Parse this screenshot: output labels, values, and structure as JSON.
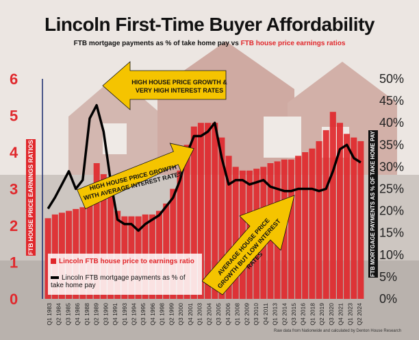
{
  "title": "Lincoln First-Time Buyer Affordability",
  "subtitle_black": "FTB mortgage payments as % of take home pay",
  "subtitle_vs": " vs ",
  "subtitle_red": "FTB house price earnings ratios",
  "left_axis_title": "FTB HOUSE PRICE EARNINGS RATIOS",
  "right_axis_title": "FTB MORTGAGE PAYMENTS AS % OF TAKE HOME PAY",
  "legend": {
    "bar_label": "Lincoln FTB house price to earnings ratio",
    "line_label": "Lincoln FTB mortgage payments as % of take home pay"
  },
  "callouts": [
    {
      "line1": "HIGH HOUSE PRICE GROWTH &",
      "line2": "VERY HIGH INTEREST RATES",
      "line3": ""
    },
    {
      "line1": "HIGH HOUSE PRICE GROWTH",
      "line2": "WITH AVERAGE INTEREST RATES",
      "line3": ""
    },
    {
      "line1": "AVERAGE HOUSE PRICE",
      "line2": "GROWTH BUT LOW INTEREST",
      "line3": "RATES"
    }
  ],
  "source": "Raw data from Nationwide and calculated by Denton House Research",
  "colors": {
    "bars": "#e0282c",
    "line": "#000000",
    "callout": "#f5c400"
  },
  "chart_data": {
    "type": "bar",
    "x_tick_labels": [
      "Q1 1983",
      "Q2 1984",
      "Q3 1985",
      "Q4 1986",
      "Q1 1988",
      "Q2 1989",
      "Q3 1990",
      "Q4 1991",
      "Q1 1993",
      "Q2 1994",
      "Q3 1995",
      "Q4 1996",
      "Q1 1998",
      "Q2 1999",
      "Q3 2000",
      "Q4 2001",
      "Q1 2003",
      "Q2 2004",
      "Q3 2005",
      "Q4 2006",
      "Q1 2008",
      "Q2 2009",
      "Q3 2010",
      "Q4 2011",
      "Q1 2013",
      "Q2 2014",
      "Q3 2015",
      "Q4 2016",
      "Q1 2018",
      "Q2 2019",
      "Q3 2020",
      "Q4 2021",
      "Q1 2023",
      "Q2 2024"
    ],
    "left_ticks": [
      "0",
      "1",
      "2",
      "3",
      "4",
      "5",
      "6"
    ],
    "right_ticks": [
      "0%",
      "5%",
      "10%",
      "15%",
      "20%",
      "25%",
      "30%",
      "35%",
      "40%",
      "45%",
      "50%"
    ],
    "ylim_left": [
      0,
      6
    ],
    "ylim_right": [
      0,
      50
    ],
    "series": [
      {
        "name": "Lincoln FTB house price to earnings ratio",
        "axis": "left",
        "values": [
          2.2,
          2.3,
          2.35,
          2.4,
          2.45,
          2.5,
          3.0,
          3.7,
          3.4,
          3.0,
          2.4,
          2.25,
          2.25,
          2.25,
          2.3,
          2.3,
          2.4,
          2.6,
          3.0,
          3.5,
          4.2,
          4.7,
          4.8,
          4.8,
          4.8,
          4.4,
          3.9,
          3.6,
          3.5,
          3.5,
          3.55,
          3.6,
          3.7,
          3.75,
          3.8,
          3.8,
          3.9,
          4.0,
          4.1,
          4.3,
          4.6,
          5.1,
          4.8,
          4.5,
          4.4,
          4.3
        ]
      },
      {
        "name": "Lincoln FTB mortgage payments as % of take home pay",
        "axis": "right",
        "values": [
          20.5,
          23,
          26,
          29,
          25,
          27,
          41,
          44,
          38,
          27,
          18,
          17,
          17,
          15.5,
          17,
          18,
          19,
          21,
          23,
          27,
          33,
          37,
          37,
          38,
          40,
          32,
          26,
          27,
          27,
          26,
          26.5,
          27,
          25.5,
          25,
          24.5,
          24.5,
          25,
          25,
          25,
          24.5,
          25,
          29,
          34,
          35,
          32,
          31
        ]
      }
    ]
  }
}
